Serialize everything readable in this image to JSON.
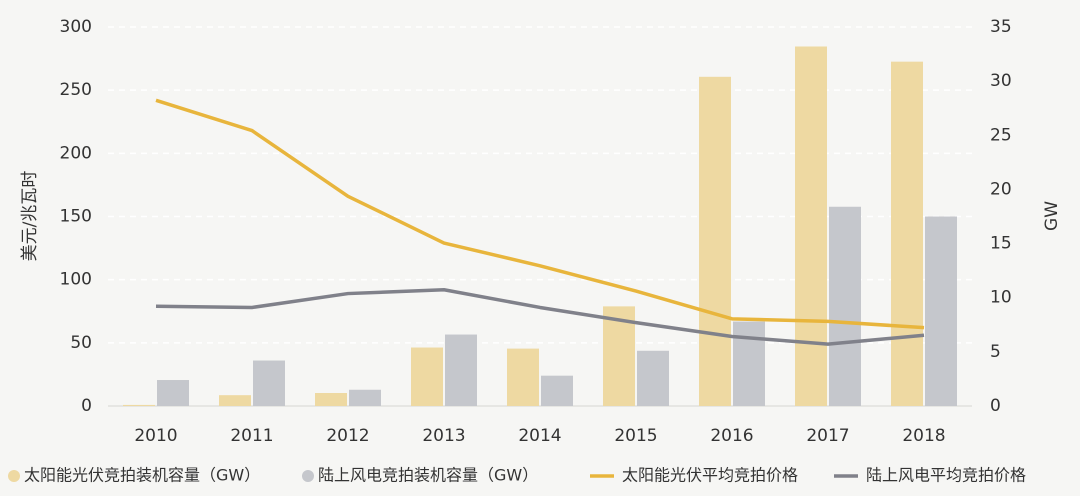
{
  "chart_data": {
    "type": "combo",
    "ylabel": "美元/兆瓦时",
    "y2label": "GW",
    "categories": [
      "2010",
      "2011",
      "2012",
      "2013",
      "2014",
      "2015",
      "2016",
      "2017",
      "2018"
    ],
    "ylim": [
      0,
      300
    ],
    "yticks": [
      0,
      50,
      100,
      150,
      200,
      250,
      300
    ],
    "y2lim": [
      0,
      35
    ],
    "y2ticks": [
      0,
      5,
      10,
      15,
      20,
      25,
      30,
      35
    ],
    "grid": true,
    "legend": "bottom",
    "series": [
      {
        "name": "太阳能光伏竞拍装机容量（GW）",
        "type": "bar",
        "axis": "y2",
        "color": "#eed9a2",
        "values": [
          0.1,
          1.0,
          1.2,
          5.4,
          5.3,
          9.2,
          30.4,
          33.2,
          31.8
        ]
      },
      {
        "name": "陆上风电竞拍装机容量（GW）",
        "type": "bar",
        "axis": "y2",
        "color": "#c5c7cc",
        "values": [
          2.4,
          4.2,
          1.5,
          6.6,
          2.8,
          5.1,
          7.8,
          18.4,
          17.5
        ]
      },
      {
        "name": "太阳能光伏平均竞拍价格",
        "type": "line",
        "color": "#e8b53c",
        "values": [
          242,
          218,
          166,
          129,
          111,
          91,
          69,
          67,
          62
        ]
      },
      {
        "name": "陆上风电平均竞拍价格",
        "type": "line",
        "color": "#80818a",
        "values": [
          79,
          78,
          89,
          92,
          78,
          66,
          55,
          49,
          56
        ]
      }
    ]
  }
}
